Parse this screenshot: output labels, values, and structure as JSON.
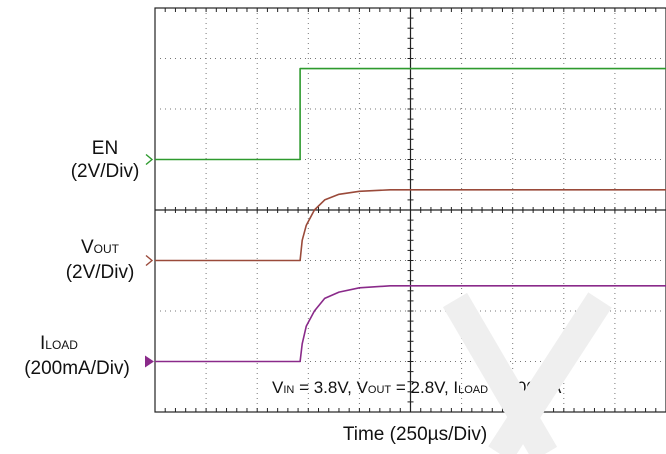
{
  "chart_data": {
    "type": "line",
    "title": "",
    "xlabel": "Time (250µs/Div)",
    "x_unit": "µs",
    "xlim": [
      0,
      2500
    ],
    "grid": true,
    "divisions": {
      "x": 10,
      "y": 8
    },
    "channels": [
      {
        "name": "EN",
        "label_main": "EN",
        "label_sub": "",
        "scale": "(2V/Div)",
        "unit": "V",
        "color": "#2e9a2e",
        "marker": "open-arrow",
        "x": [
          0,
          710,
          710,
          2500
        ],
        "y": [
          0,
          0,
          3.6,
          3.6
        ]
      },
      {
        "name": "VOUT",
        "label_main": "V",
        "label_sub": "OUT",
        "scale": "(2V/Div)",
        "unit": "V",
        "color": "#9a4a3a",
        "marker": "open-arrow",
        "x": [
          0,
          710,
          720,
          740,
          780,
          830,
          900,
          1000,
          1150,
          2500
        ],
        "y": [
          0,
          0,
          0.8,
          1.4,
          2.0,
          2.4,
          2.62,
          2.74,
          2.8,
          2.8
        ]
      },
      {
        "name": "ILOAD",
        "label_main": "I",
        "label_sub": "LOAD",
        "scale": "(200mA/Div)",
        "unit": "mA",
        "color": "#8a2a8a",
        "marker": "filled-arrow",
        "x": [
          0,
          710,
          720,
          740,
          780,
          830,
          900,
          1000,
          1150,
          2500
        ],
        "y": [
          0,
          0,
          70,
          140,
          200,
          250,
          275,
          292,
          300,
          300
        ]
      }
    ],
    "annotation": {
      "v_main": "V",
      "v_sub": "IN",
      "v_val": " = 3.8V, V",
      "vo_sub": "OUT",
      "vo_val": " = 2.8V, I",
      "il_sub": "LOAD",
      "il_val": " = 300mA"
    }
  }
}
